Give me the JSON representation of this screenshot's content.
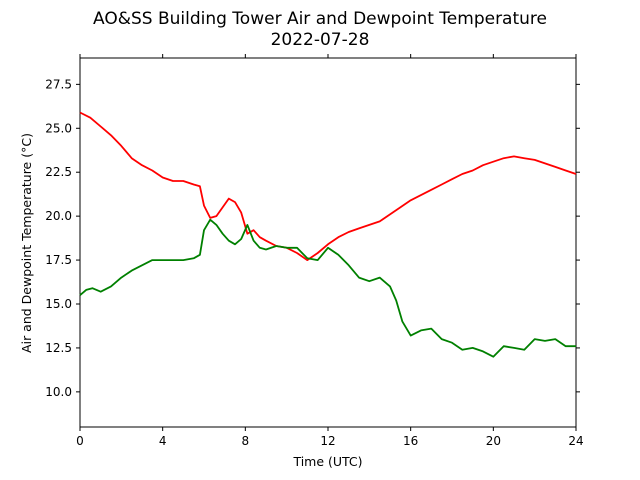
{
  "chart_data": {
    "type": "line",
    "title": "AO&SS Building Tower Air and Dewpoint Temperature",
    "subtitle": "2022-07-28",
    "xlabel": "Time (UTC)",
    "ylabel": "Air and Dewpoint Temperature (°C)",
    "xlim": [
      0,
      24
    ],
    "ylim": [
      8.0,
      29.0
    ],
    "xticks": [
      0,
      4,
      8,
      12,
      16,
      20,
      24
    ],
    "xtick_labels": [
      "0",
      "4",
      "8",
      "12",
      "16",
      "20",
      "24"
    ],
    "yticks": [
      10.0,
      12.5,
      15.0,
      17.5,
      20.0,
      22.5,
      25.0,
      27.5
    ],
    "ytick_labels": [
      "10.0",
      "12.5",
      "15.0",
      "17.5",
      "20.0",
      "22.5",
      "25.0",
      "27.5"
    ],
    "grid": false,
    "legend": "none",
    "series": [
      {
        "color": "#ff0000",
        "x": [
          0,
          0.5,
          1.0,
          1.5,
          2.0,
          2.5,
          3.0,
          3.5,
          4.0,
          4.5,
          5.0,
          5.5,
          5.8,
          6.0,
          6.3,
          6.6,
          6.9,
          7.2,
          7.5,
          7.8,
          8.1,
          8.4,
          8.7,
          9.0,
          9.5,
          10.0,
          10.5,
          11.0,
          11.5,
          12.0,
          12.5,
          13.0,
          13.5,
          14.0,
          14.5,
          15.0,
          15.5,
          16.0,
          16.5,
          17.0,
          17.5,
          18.0,
          18.5,
          19.0,
          19.5,
          20.0,
          20.5,
          21.0,
          21.5,
          22.0,
          22.5,
          23.0,
          23.5,
          24.0
        ],
        "y": [
          25.9,
          25.6,
          25.1,
          24.6,
          24.0,
          23.3,
          22.9,
          22.6,
          22.2,
          22.0,
          22.0,
          21.8,
          21.7,
          20.6,
          19.9,
          20.0,
          20.5,
          21.0,
          20.8,
          20.2,
          19.0,
          19.2,
          18.8,
          18.6,
          18.3,
          18.2,
          17.9,
          17.5,
          17.9,
          18.4,
          18.8,
          19.1,
          19.3,
          19.5,
          19.7,
          20.1,
          20.5,
          20.9,
          21.2,
          21.5,
          21.8,
          22.1,
          22.4,
          22.6,
          22.9,
          23.1,
          23.3,
          23.4,
          23.3,
          23.2,
          23.0,
          22.8,
          22.6,
          22.4
        ]
      },
      {
        "color": "#008000",
        "x": [
          0,
          0.3,
          0.6,
          1.0,
          1.5,
          2.0,
          2.5,
          3.0,
          3.5,
          4.0,
          4.5,
          5.0,
          5.5,
          5.8,
          6.0,
          6.3,
          6.6,
          6.9,
          7.2,
          7.5,
          7.8,
          8.1,
          8.4,
          8.7,
          9.0,
          9.5,
          10.0,
          10.5,
          11.0,
          11.5,
          12.0,
          12.5,
          13.0,
          13.5,
          14.0,
          14.5,
          15.0,
          15.3,
          15.6,
          16.0,
          16.5,
          17.0,
          17.5,
          18.0,
          18.5,
          19.0,
          19.5,
          20.0,
          20.5,
          21.0,
          21.5,
          22.0,
          22.5,
          23.0,
          23.5,
          24.0
        ],
        "y": [
          15.5,
          15.8,
          15.9,
          15.7,
          16.0,
          16.5,
          16.9,
          17.2,
          17.5,
          17.5,
          17.5,
          17.5,
          17.6,
          17.8,
          19.2,
          19.8,
          19.5,
          19.0,
          18.6,
          18.4,
          18.7,
          19.5,
          18.6,
          18.2,
          18.1,
          18.3,
          18.2,
          18.2,
          17.6,
          17.5,
          18.2,
          17.8,
          17.2,
          16.5,
          16.3,
          16.5,
          16.0,
          15.2,
          14.0,
          13.2,
          13.5,
          13.6,
          13.0,
          12.8,
          12.4,
          12.5,
          12.3,
          12.0,
          12.6,
          12.5,
          12.4,
          13.0,
          12.9,
          13.0,
          12.6,
          12.6
        ]
      }
    ]
  }
}
